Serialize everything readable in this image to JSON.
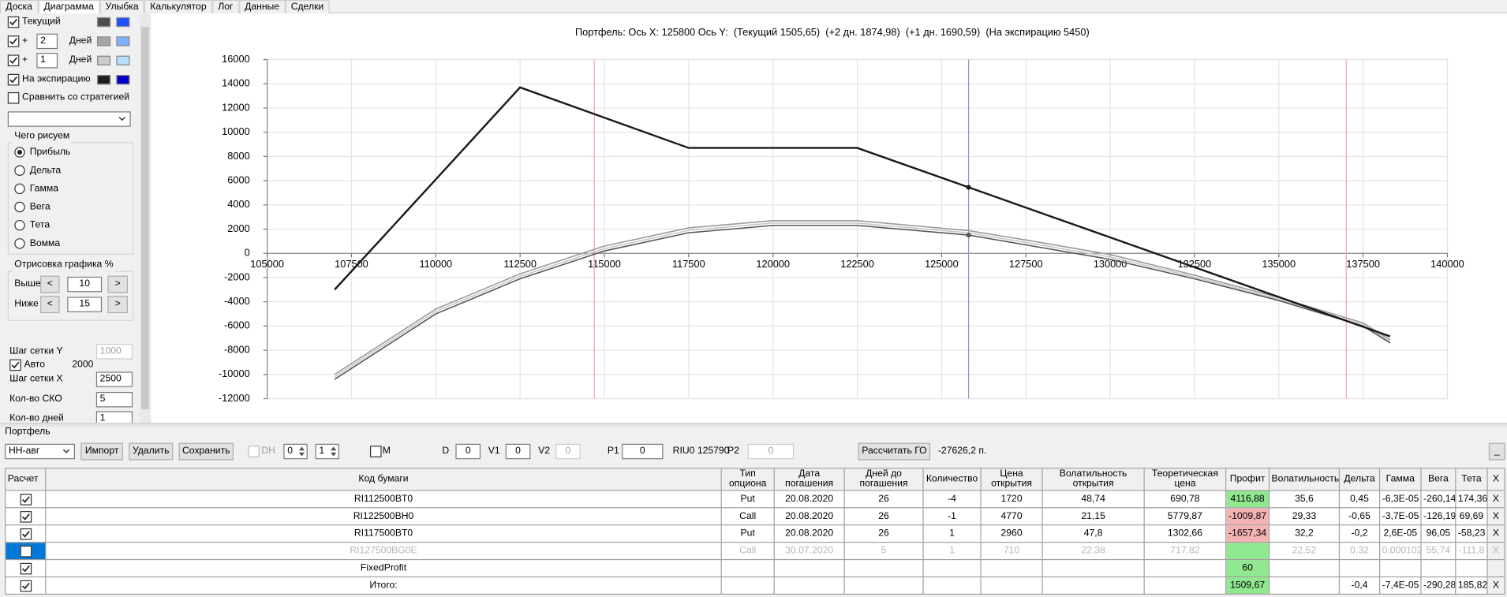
{
  "tabs": [
    {
      "label": "Доска"
    },
    {
      "label": "Диаграмма",
      "active": true
    },
    {
      "label": "Улыбка"
    },
    {
      "label": "Калькулятор"
    },
    {
      "label": "Лог"
    },
    {
      "label": "Данные"
    },
    {
      "label": "Сделки"
    }
  ],
  "left_panel": {
    "curves": [
      {
        "label": "Текущий",
        "checked": true,
        "colors": [
          "#4d4d4d",
          "#1e50ff"
        ]
      },
      {
        "prefix": "+",
        "days": "2",
        "unit": "Дней",
        "checked": true,
        "colors": [
          "#a6a6a6",
          "#7fb0ff"
        ]
      },
      {
        "prefix": "+",
        "days": "1",
        "unit": "Дней",
        "checked": true,
        "colors": [
          "#cacaca",
          "#b3e0ff"
        ]
      },
      {
        "label": "На экспирацию",
        "checked": true,
        "colors": [
          "#1e1e1e",
          "#0000c8"
        ]
      }
    ],
    "compare": {
      "label": "Сравнить со стратегией",
      "checked": false
    },
    "draw_group": {
      "title": "Чего рисуем",
      "options": [
        {
          "label": "Прибыль",
          "selected": true
        },
        {
          "label": "Дельта"
        },
        {
          "label": "Гамма"
        },
        {
          "label": "Вега"
        },
        {
          "label": "Тета"
        },
        {
          "label": "Вомма"
        }
      ]
    },
    "render_group": {
      "title": "Отрисовка графика %",
      "rows": [
        {
          "label": "Выше",
          "prev": "<",
          "value": "10",
          "next": ">"
        },
        {
          "label": "Ниже",
          "prev": "<",
          "value": "15",
          "next": ">"
        }
      ]
    },
    "grid_y": {
      "label": "Шаг сетки Y",
      "value": "1000"
    },
    "auto": {
      "label": "Авто",
      "checked": true,
      "value": "2000"
    },
    "grid_x": {
      "label": "Шаг сетки X",
      "value": "2500"
    },
    "sko": {
      "label": "Кол-во СКО",
      "value": "5"
    },
    "days": {
      "label": "Кол-во дней",
      "value": "1"
    }
  },
  "chart_data": {
    "type": "line",
    "title": "Портфель: Ось X: 125800 Ось Y:  (Текущий 1505,65)  (+2 дн. 1874,98)  (+1 дн. 1690,59)  (На экспирацию 5450)",
    "x": [
      107000,
      110000,
      112500,
      115000,
      117500,
      120000,
      122500,
      125800,
      127500,
      130000,
      132500,
      135000,
      137500,
      138300
    ],
    "series": [
      {
        "color": "#1a1a1a",
        "marker": true,
        "values": [
          -3000,
          6100,
          13700,
          11200,
          8700,
          8700,
          8700,
          5450,
          3780,
          1320,
          -1150,
          -3610,
          -6070,
          -6860
        ]
      },
      {
        "color": "#555555",
        "marker": true,
        "values": [
          -10400,
          -5000,
          -2100,
          200,
          1700,
          2300,
          2300,
          1505.65,
          700,
          -500,
          -2100,
          -3900,
          -6000,
          -7400
        ]
      },
      {
        "color": "#9a9a9a",
        "values": [
          -10000,
          -4600,
          -1700,
          600,
          2100,
          2700,
          2700,
          1874.98,
          1100,
          -100,
          -1800,
          -3650,
          -5750,
          -7150
        ]
      },
      {
        "color": "#c8c8c8",
        "values": [
          -10200,
          -4800,
          -1900,
          400,
          1900,
          2500,
          2500,
          1690.59,
          900,
          -300,
          -1950,
          -3800,
          -5900,
          -7300
        ]
      }
    ],
    "xlim": [
      105000,
      140000
    ],
    "xticks": [
      105000,
      107500,
      110000,
      112500,
      115000,
      117500,
      120000,
      122500,
      125000,
      127500,
      130000,
      132500,
      135000,
      137500,
      140000
    ],
    "ylim": [
      -12000,
      16000
    ],
    "yticks": [
      -12000,
      -10000,
      -8000,
      -6000,
      -4000,
      -2000,
      0,
      2000,
      4000,
      6000,
      8000,
      10000,
      12000,
      14000,
      16000
    ],
    "grid": true,
    "cursor_x": 125800,
    "sigma_lines": [
      114700,
      137000
    ]
  },
  "portfolio": {
    "title": "Портфель",
    "toolbar": {
      "account": "НН-авг",
      "import": "Импорт",
      "delete": "Удалить",
      "save": "Сохранить",
      "dh": {
        "label": "DH",
        "checked": false
      },
      "spin1": "0",
      "spin2": "1",
      "m": {
        "label": "M",
        "checked": false
      },
      "d": {
        "label": "D",
        "value": "0"
      },
      "v1": {
        "label": "V1",
        "value": "0"
      },
      "v2": {
        "label": "V2",
        "value": "0"
      },
      "p1": {
        "label": "P1",
        "value": "0"
      },
      "futures": "RIU0 125790",
      "p2": {
        "label": "P2",
        "value": "0"
      },
      "calc": "Рассчитать ГО",
      "margin": "-27626,2 п.",
      "minimize": "_"
    },
    "table": {
      "columns": [
        "Расчет",
        "Код бумаги",
        "Тип опциона",
        "Дата погашения",
        "Дней до погашения",
        "Количество",
        "Цена открытия",
        "Волатильность открытия",
        "Теоретическая цена",
        "Профит",
        "Волатильность",
        "Дельта",
        "Гамма",
        "Вега",
        "Тета",
        "X"
      ],
      "rows": [
        {
          "checked": true,
          "profit_bg": "#90e890",
          "cells": [
            "RI112500BT0",
            "Put",
            "20.08.2020",
            "26",
            "-4",
            "1720",
            "48,74",
            "690,78",
            "4116,88",
            "35,6",
            "0,45",
            "-6,3E-05",
            "-260,14",
            "174,36",
            "X"
          ]
        },
        {
          "checked": true,
          "profit_bg": "#f4b4b4",
          "cells": [
            "RI122500BH0",
            "Call",
            "20.08.2020",
            "26",
            "-1",
            "4770",
            "21,15",
            "5779,87",
            "-1009,87",
            "29,33",
            "-0,65",
            "-3,7E-05",
            "-126,19",
            "69,69",
            "X"
          ]
        },
        {
          "checked": true,
          "profit_bg": "#f4b4b4",
          "cells": [
            "RI117500BT0",
            "Put",
            "20.08.2020",
            "26",
            "1",
            "2960",
            "47,8",
            "1302,66",
            "-1657,34",
            "32,2",
            "-0,2",
            "2,6E-05",
            "96,05",
            "-58,23",
            "X"
          ]
        },
        {
          "checked": false,
          "selected": true,
          "dim": true,
          "profit_bg": "#90e890",
          "cells": [
            "RI127500BG0E",
            "Call",
            "30.07.2020",
            "5",
            "1",
            "710",
            "22,38",
            "717,82",
            null,
            "22,52",
            "0,32",
            "0,000102",
            "55,74",
            "-111,8",
            "X"
          ]
        },
        {
          "checked": true,
          "profit_bg": "#90e890",
          "cells": [
            "FixedProfit",
            null,
            null,
            null,
            null,
            null,
            null,
            null,
            "60",
            null,
            null,
            null,
            null,
            null,
            null
          ]
        },
        {
          "checked": true,
          "profit_bg": "#90e890",
          "cells": [
            "Итого:",
            null,
            null,
            null,
            null,
            null,
            null,
            null,
            "1509,67",
            null,
            "-0,4",
            "-7,4E-05",
            "-290,28",
            "185,82",
            "X"
          ]
        }
      ]
    }
  }
}
